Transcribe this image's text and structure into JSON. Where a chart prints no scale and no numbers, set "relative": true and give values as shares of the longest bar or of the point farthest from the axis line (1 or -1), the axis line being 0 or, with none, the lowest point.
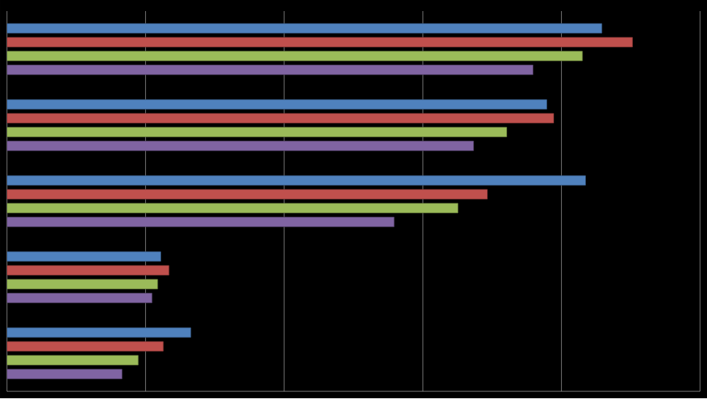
{
  "chart_data": {
    "type": "bar",
    "orientation": "horizontal",
    "relative": true,
    "grid": "x",
    "categories": [
      null,
      null,
      null,
      null,
      null
    ],
    "series": [
      {
        "color": "#4f81bd",
        "values": [
          0.951,
          0.863,
          0.925,
          0.246,
          0.294
        ]
      },
      {
        "color": "#c0504d",
        "values": [
          1,
          0.874,
          0.768,
          0.259,
          0.25
        ]
      },
      {
        "color": "#9bbb59",
        "values": [
          0.92,
          0.799,
          0.721,
          0.241,
          0.21
        ]
      },
      {
        "color": "#8064a2",
        "values": [
          0.841,
          0.746,
          0.619,
          0.232,
          0.184
        ]
      }
    ]
  }
}
